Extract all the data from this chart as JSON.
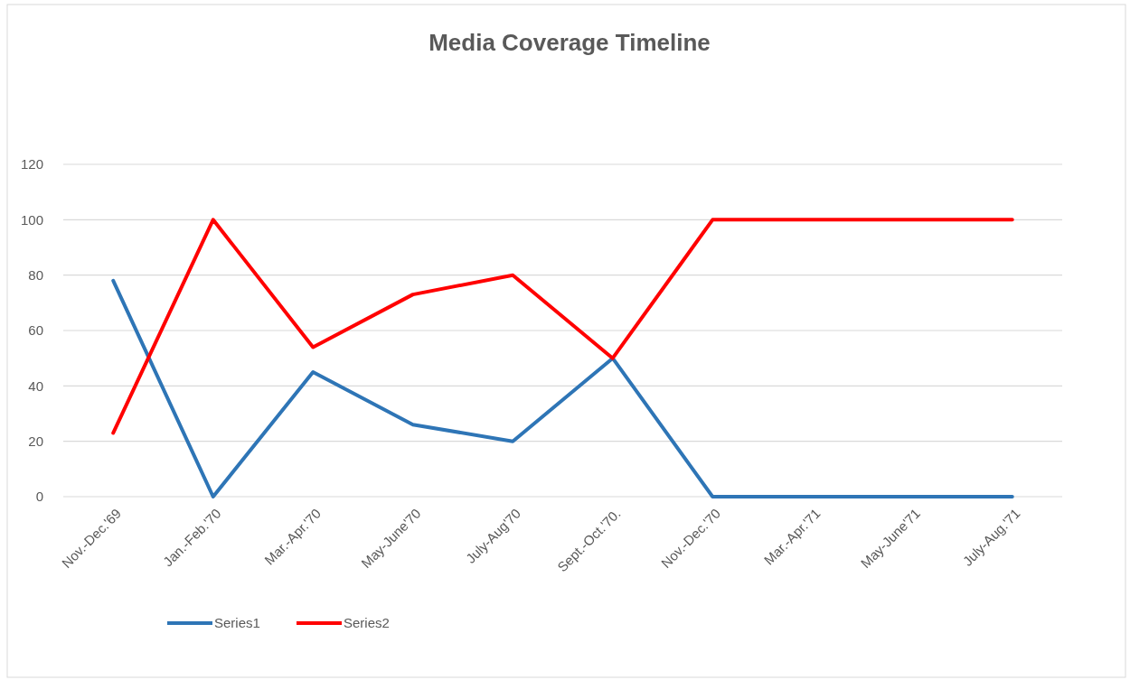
{
  "chart_data": {
    "type": "line",
    "title": "Media Coverage Timeline",
    "categories": [
      "Nov.-Dec.'69",
      "Jan.-Feb.'70",
      "Mar.-Apr.'70",
      "May-June'70",
      "July-Aug'70",
      "Sept.-Oct.'70.",
      "Nov.-Dec.'70",
      "Mar.-Apr.'71",
      "May-June'71",
      "July-Aug.'71"
    ],
    "series": [
      {
        "name": "Series1",
        "color": "#2e75b6",
        "values": [
          78,
          0,
          45,
          26,
          20,
          50,
          0,
          0,
          0,
          0
        ]
      },
      {
        "name": "Series2",
        "color": "#ff0000",
        "values": [
          23,
          100,
          54,
          73,
          80,
          50,
          100,
          100,
          100,
          100
        ]
      }
    ],
    "ylim": [
      0,
      120
    ],
    "yticks": [
      0,
      20,
      40,
      60,
      80,
      100,
      120
    ],
    "grid": "y",
    "legend": "bottom"
  }
}
